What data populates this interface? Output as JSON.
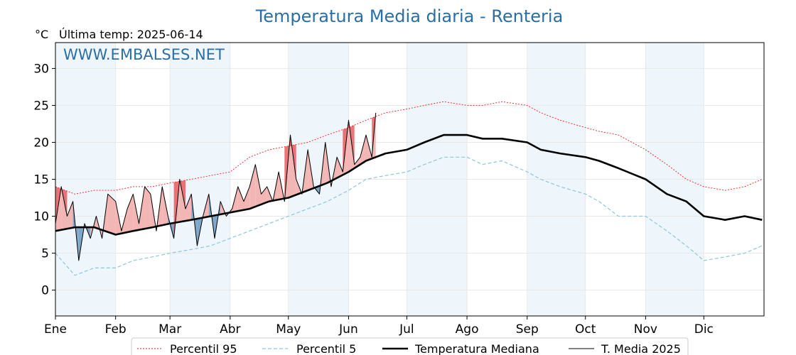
{
  "header": {
    "title": "Temperatura Media diaria - Renteria",
    "unit": "°C",
    "last_temp": "Última temp: 2025-06-14",
    "watermark": "WWW.EMBALSES.NET"
  },
  "chart_data": {
    "type": "line",
    "title": "Temperatura Media diaria - Renteria",
    "ylabel": "°C",
    "ylim": [
      -3.5,
      33.5
    ],
    "yticks": [
      0,
      5,
      10,
      15,
      20,
      25,
      30
    ],
    "xlim_day": [
      0,
      365
    ],
    "months": [
      "Ene",
      "Feb",
      "Mar",
      "Abr",
      "May",
      "Jun",
      "Jul",
      "Ago",
      "Sep",
      "Oct",
      "Nov",
      "Dic"
    ],
    "month_start_day": [
      0,
      31,
      59,
      90,
      120,
      151,
      181,
      212,
      243,
      273,
      304,
      334
    ],
    "shaded_months": [
      0,
      2,
      4,
      6,
      8,
      10
    ],
    "grid": true,
    "legend_position": "bottom",
    "colors": {
      "p95": "#e8211d",
      "p5": "#8ec7dc",
      "median": "#000000",
      "t2025": "#000000",
      "above": "#f2b6b4",
      "below": "#7fa7c9",
      "above_strong": "#e8454a",
      "below_strong": "#1f5f9e",
      "shade": "#eef5fb"
    },
    "series": [
      {
        "name": "Percentil 95",
        "key": "p95",
        "style": "dotted",
        "x": [
          0,
          10,
          20,
          31,
          40,
          50,
          59,
          70,
          80,
          90,
          100,
          110,
          120,
          130,
          140,
          151,
          160,
          170,
          181,
          190,
          200,
          212,
          220,
          230,
          243,
          250,
          260,
          273,
          280,
          290,
          304,
          315,
          325,
          334,
          345,
          355,
          364
        ],
        "y": [
          14,
          13,
          13.5,
          13.5,
          14,
          14,
          14.5,
          15,
          15.5,
          16,
          18,
          19,
          19.5,
          20,
          21,
          22,
          23,
          24,
          24.5,
          25,
          25.5,
          25,
          25,
          25.5,
          25,
          24,
          23,
          22,
          21.5,
          21,
          19,
          17,
          15,
          14,
          13.5,
          14,
          15
        ]
      },
      {
        "name": "Percentil 5",
        "key": "p5",
        "style": "dashed",
        "x": [
          0,
          10,
          20,
          31,
          40,
          50,
          59,
          70,
          80,
          90,
          100,
          110,
          120,
          130,
          140,
          151,
          160,
          170,
          181,
          190,
          200,
          212,
          220,
          230,
          243,
          250,
          260,
          273,
          280,
          290,
          304,
          315,
          325,
          334,
          345,
          355,
          364
        ],
        "y": [
          5,
          2,
          3,
          3,
          4,
          4.5,
          5,
          5.5,
          6,
          7,
          8,
          9,
          10,
          11,
          12,
          13.5,
          15,
          15.5,
          16,
          17,
          18,
          18,
          17,
          17.5,
          16,
          15,
          14,
          13,
          12,
          10,
          10,
          8,
          6,
          4,
          4.5,
          5,
          6
        ]
      },
      {
        "name": "Temperatura Mediana",
        "key": "median",
        "style": "solid-thick",
        "x": [
          0,
          10,
          20,
          31,
          40,
          50,
          59,
          70,
          80,
          90,
          100,
          110,
          120,
          130,
          140,
          151,
          160,
          170,
          181,
          190,
          200,
          212,
          220,
          230,
          243,
          250,
          260,
          273,
          280,
          290,
          304,
          315,
          325,
          334,
          345,
          355,
          364
        ],
        "y": [
          8,
          8.5,
          8.5,
          7.5,
          8,
          8.5,
          9,
          9.5,
          10,
          10.5,
          11,
          12,
          12.5,
          13.5,
          14.5,
          16,
          17.5,
          18.5,
          19,
          20,
          21,
          21,
          20.5,
          20.5,
          20,
          19,
          18.5,
          18,
          17.5,
          16.5,
          15,
          13,
          12,
          10,
          9.5,
          10,
          9.5
        ]
      },
      {
        "name": "T. Media 2025",
        "key": "t2025",
        "style": "solid-thin",
        "x": [
          0,
          3,
          6,
          9,
          12,
          15,
          18,
          21,
          24,
          27,
          31,
          34,
          37,
          40,
          43,
          46,
          49,
          52,
          55,
          58,
          61,
          64,
          67,
          70,
          73,
          76,
          79,
          82,
          85,
          88,
          91,
          94,
          97,
          100,
          103,
          106,
          109,
          112,
          115,
          118,
          121,
          124,
          127,
          130,
          133,
          136,
          139,
          142,
          145,
          148,
          151,
          154,
          157,
          160,
          163,
          165
        ],
        "y": [
          9,
          14,
          10,
          12,
          4,
          9,
          7,
          10,
          7,
          13,
          12,
          8,
          11,
          13,
          9,
          14,
          13,
          8,
          14,
          10,
          7,
          15,
          11,
          13,
          6,
          10,
          13,
          7,
          12,
          10,
          11,
          14,
          12,
          14,
          17,
          13,
          14,
          12,
          16,
          12,
          21,
          15,
          13,
          19,
          14,
          13,
          20,
          14,
          18,
          16,
          23,
          17,
          18,
          21,
          18,
          24
        ]
      }
    ]
  },
  "legend": [
    {
      "label": "Percentil 95",
      "key": "p95"
    },
    {
      "label": "Percentil 5",
      "key": "p5"
    },
    {
      "label": "Temperatura Mediana",
      "key": "median"
    },
    {
      "label": "T. Media 2025",
      "key": "t2025"
    }
  ]
}
